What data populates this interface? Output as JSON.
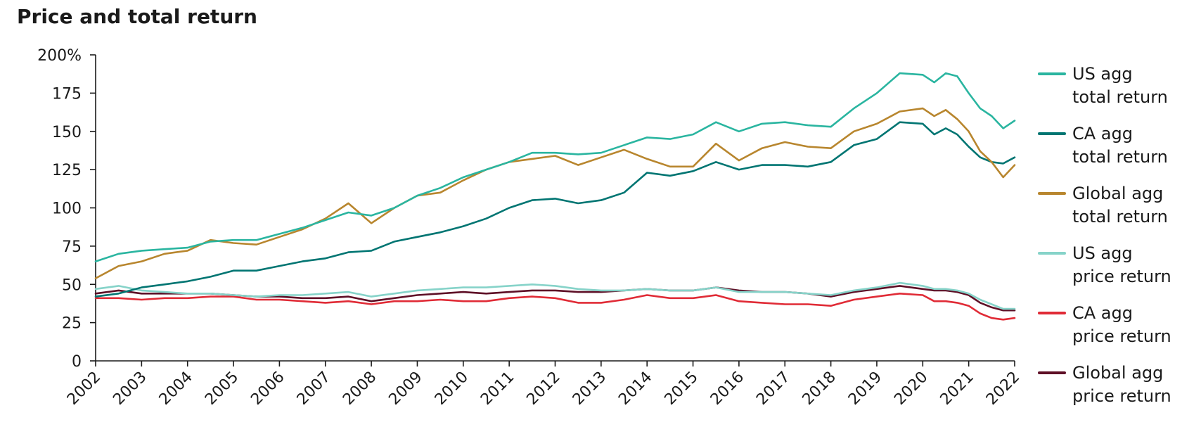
{
  "chart_data": {
    "type": "line",
    "title": "Price and total return",
    "xlabel": "",
    "ylabel": "",
    "x_ticks": [
      "2002",
      "2003",
      "2004",
      "2005",
      "2006",
      "2007",
      "2008",
      "2009",
      "2010",
      "2011",
      "2012",
      "2013",
      "2014",
      "2015",
      "2016",
      "2017",
      "2018",
      "2019",
      "2020",
      "2021",
      "2022"
    ],
    "y_ticks": [
      0,
      25,
      50,
      75,
      100,
      125,
      150,
      175,
      200
    ],
    "y_tick_labels": [
      "0",
      "25",
      "50",
      "75",
      "100",
      "125",
      "150",
      "175",
      "200%"
    ],
    "xlim": [
      2002,
      2022
    ],
    "ylim": [
      0,
      200
    ],
    "grid": false,
    "legend_position": "right",
    "series": [
      {
        "name": "US agg total return",
        "legend_lines": [
          "US agg",
          "total return"
        ],
        "color": "#2ab5a0",
        "points": [
          [
            2002,
            65
          ],
          [
            2002.5,
            70
          ],
          [
            2003,
            72
          ],
          [
            2003.5,
            73
          ],
          [
            2004,
            74
          ],
          [
            2004.5,
            78
          ],
          [
            2005,
            79
          ],
          [
            2005.5,
            79
          ],
          [
            2006,
            83
          ],
          [
            2006.5,
            87
          ],
          [
            2007,
            92
          ],
          [
            2007.5,
            97
          ],
          [
            2008,
            95
          ],
          [
            2008.5,
            100
          ],
          [
            2009,
            108
          ],
          [
            2009.5,
            113
          ],
          [
            2010,
            120
          ],
          [
            2010.5,
            125
          ],
          [
            2011,
            130
          ],
          [
            2011.5,
            136
          ],
          [
            2012,
            136
          ],
          [
            2012.5,
            135
          ],
          [
            2013,
            136
          ],
          [
            2013.5,
            141
          ],
          [
            2014,
            146
          ],
          [
            2014.5,
            145
          ],
          [
            2015,
            148
          ],
          [
            2015.5,
            156
          ],
          [
            2016,
            150
          ],
          [
            2016.5,
            155
          ],
          [
            2017,
            156
          ],
          [
            2017.5,
            154
          ],
          [
            2018,
            153
          ],
          [
            2018.5,
            165
          ],
          [
            2019,
            175
          ],
          [
            2019.5,
            188
          ],
          [
            2020,
            187
          ],
          [
            2020.25,
            182
          ],
          [
            2020.5,
            188
          ],
          [
            2020.75,
            186
          ],
          [
            2021,
            175
          ],
          [
            2021.25,
            165
          ],
          [
            2021.5,
            160
          ],
          [
            2021.75,
            152
          ],
          [
            2022,
            157
          ]
        ]
      },
      {
        "name": "CA agg total return",
        "legend_lines": [
          "CA agg",
          "total return"
        ],
        "color": "#007572",
        "points": [
          [
            2002,
            42
          ],
          [
            2002.5,
            44
          ],
          [
            2003,
            48
          ],
          [
            2003.5,
            50
          ],
          [
            2004,
            52
          ],
          [
            2004.5,
            55
          ],
          [
            2005,
            59
          ],
          [
            2005.5,
            59
          ],
          [
            2006,
            62
          ],
          [
            2006.5,
            65
          ],
          [
            2007,
            67
          ],
          [
            2007.5,
            71
          ],
          [
            2008,
            72
          ],
          [
            2008.5,
            78
          ],
          [
            2009,
            81
          ],
          [
            2009.5,
            84
          ],
          [
            2010,
            88
          ],
          [
            2010.5,
            93
          ],
          [
            2011,
            100
          ],
          [
            2011.5,
            105
          ],
          [
            2012,
            106
          ],
          [
            2012.5,
            103
          ],
          [
            2013,
            105
          ],
          [
            2013.5,
            110
          ],
          [
            2014,
            123
          ],
          [
            2014.5,
            121
          ],
          [
            2015,
            124
          ],
          [
            2015.5,
            130
          ],
          [
            2016,
            125
          ],
          [
            2016.5,
            128
          ],
          [
            2017,
            128
          ],
          [
            2017.5,
            127
          ],
          [
            2018,
            130
          ],
          [
            2018.5,
            141
          ],
          [
            2019,
            145
          ],
          [
            2019.5,
            156
          ],
          [
            2020,
            155
          ],
          [
            2020.25,
            148
          ],
          [
            2020.5,
            152
          ],
          [
            2020.75,
            148
          ],
          [
            2021,
            140
          ],
          [
            2021.25,
            133
          ],
          [
            2021.5,
            130
          ],
          [
            2021.75,
            129
          ],
          [
            2022,
            133
          ]
        ]
      },
      {
        "name": "Global agg total return",
        "legend_lines": [
          "Global agg",
          "total return"
        ],
        "color": "#b8862e",
        "points": [
          [
            2002,
            54
          ],
          [
            2002.5,
            62
          ],
          [
            2003,
            65
          ],
          [
            2003.5,
            70
          ],
          [
            2004,
            72
          ],
          [
            2004.5,
            79
          ],
          [
            2005,
            77
          ],
          [
            2005.5,
            76
          ],
          [
            2006,
            81
          ],
          [
            2006.5,
            86
          ],
          [
            2007,
            93
          ],
          [
            2007.5,
            103
          ],
          [
            2008,
            90
          ],
          [
            2008.5,
            100
          ],
          [
            2009,
            108
          ],
          [
            2009.5,
            110
          ],
          [
            2010,
            118
          ],
          [
            2010.5,
            125
          ],
          [
            2011,
            130
          ],
          [
            2011.5,
            132
          ],
          [
            2012,
            134
          ],
          [
            2012.5,
            128
          ],
          [
            2013,
            133
          ],
          [
            2013.5,
            138
          ],
          [
            2014,
            132
          ],
          [
            2014.5,
            127
          ],
          [
            2015,
            127
          ],
          [
            2015.5,
            142
          ],
          [
            2016,
            131
          ],
          [
            2016.5,
            139
          ],
          [
            2017,
            143
          ],
          [
            2017.5,
            140
          ],
          [
            2018,
            139
          ],
          [
            2018.5,
            150
          ],
          [
            2019,
            155
          ],
          [
            2019.5,
            163
          ],
          [
            2020,
            165
          ],
          [
            2020.25,
            160
          ],
          [
            2020.5,
            164
          ],
          [
            2020.75,
            158
          ],
          [
            2021,
            150
          ],
          [
            2021.25,
            137
          ],
          [
            2021.5,
            130
          ],
          [
            2021.75,
            120
          ],
          [
            2022,
            128
          ]
        ]
      },
      {
        "name": "US agg price return",
        "legend_lines": [
          "US agg",
          "price return"
        ],
        "color": "#86d3c9",
        "points": [
          [
            2002,
            47
          ],
          [
            2002.5,
            49
          ],
          [
            2003,
            46
          ],
          [
            2003.5,
            45
          ],
          [
            2004,
            44
          ],
          [
            2004.5,
            44
          ],
          [
            2005,
            43
          ],
          [
            2005.5,
            42
          ],
          [
            2006,
            43
          ],
          [
            2006.5,
            43
          ],
          [
            2007,
            44
          ],
          [
            2007.5,
            45
          ],
          [
            2008,
            42
          ],
          [
            2008.5,
            44
          ],
          [
            2009,
            46
          ],
          [
            2009.5,
            47
          ],
          [
            2010,
            48
          ],
          [
            2010.5,
            48
          ],
          [
            2011,
            49
          ],
          [
            2011.5,
            50
          ],
          [
            2012,
            49
          ],
          [
            2012.5,
            47
          ],
          [
            2013,
            46
          ],
          [
            2013.5,
            46
          ],
          [
            2014,
            47
          ],
          [
            2014.5,
            46
          ],
          [
            2015,
            46
          ],
          [
            2015.5,
            48
          ],
          [
            2016,
            45
          ],
          [
            2016.5,
            45
          ],
          [
            2017,
            45
          ],
          [
            2017.5,
            44
          ],
          [
            2018,
            43
          ],
          [
            2018.5,
            46
          ],
          [
            2019,
            48
          ],
          [
            2019.5,
            51
          ],
          [
            2020,
            49
          ],
          [
            2020.25,
            47
          ],
          [
            2020.5,
            47
          ],
          [
            2020.75,
            46
          ],
          [
            2021,
            44
          ],
          [
            2021.25,
            40
          ],
          [
            2021.5,
            37
          ],
          [
            2021.75,
            34
          ],
          [
            2022,
            34
          ]
        ]
      },
      {
        "name": "CA agg price return",
        "legend_lines": [
          "CA agg",
          "price return"
        ],
        "color": "#e02b36",
        "points": [
          [
            2002,
            41
          ],
          [
            2002.5,
            41
          ],
          [
            2003,
            40
          ],
          [
            2003.5,
            41
          ],
          [
            2004,
            41
          ],
          [
            2004.5,
            42
          ],
          [
            2005,
            42
          ],
          [
            2005.5,
            40
          ],
          [
            2006,
            40
          ],
          [
            2006.5,
            39
          ],
          [
            2007,
            38
          ],
          [
            2007.5,
            39
          ],
          [
            2008,
            37
          ],
          [
            2008.5,
            39
          ],
          [
            2009,
            39
          ],
          [
            2009.5,
            40
          ],
          [
            2010,
            39
          ],
          [
            2010.5,
            39
          ],
          [
            2011,
            41
          ],
          [
            2011.5,
            42
          ],
          [
            2012,
            41
          ],
          [
            2012.5,
            38
          ],
          [
            2013,
            38
          ],
          [
            2013.5,
            40
          ],
          [
            2014,
            43
          ],
          [
            2014.5,
            41
          ],
          [
            2015,
            41
          ],
          [
            2015.5,
            43
          ],
          [
            2016,
            39
          ],
          [
            2016.5,
            38
          ],
          [
            2017,
            37
          ],
          [
            2017.5,
            37
          ],
          [
            2018,
            36
          ],
          [
            2018.5,
            40
          ],
          [
            2019,
            42
          ],
          [
            2019.5,
            44
          ],
          [
            2020,
            43
          ],
          [
            2020.25,
            39
          ],
          [
            2020.5,
            39
          ],
          [
            2020.75,
            38
          ],
          [
            2021,
            36
          ],
          [
            2021.25,
            31
          ],
          [
            2021.5,
            28
          ],
          [
            2021.75,
            27
          ],
          [
            2022,
            28
          ]
        ]
      },
      {
        "name": "Global agg price return",
        "legend_lines": [
          "Global agg",
          "price return"
        ],
        "color": "#5e0f26",
        "points": [
          [
            2002,
            44
          ],
          [
            2002.5,
            46
          ],
          [
            2003,
            44
          ],
          [
            2003.5,
            44
          ],
          [
            2004,
            44
          ],
          [
            2004.5,
            44
          ],
          [
            2005,
            43
          ],
          [
            2005.5,
            42
          ],
          [
            2006,
            42
          ],
          [
            2006.5,
            41
          ],
          [
            2007,
            41
          ],
          [
            2007.5,
            42
          ],
          [
            2008,
            39
          ],
          [
            2008.5,
            41
          ],
          [
            2009,
            43
          ],
          [
            2009.5,
            44
          ],
          [
            2010,
            45
          ],
          [
            2010.5,
            44
          ],
          [
            2011,
            45
          ],
          [
            2011.5,
            46
          ],
          [
            2012,
            46
          ],
          [
            2012.5,
            45
          ],
          [
            2013,
            45
          ],
          [
            2013.5,
            46
          ],
          [
            2014,
            47
          ],
          [
            2014.5,
            46
          ],
          [
            2015,
            46
          ],
          [
            2015.5,
            48
          ],
          [
            2016,
            46
          ],
          [
            2016.5,
            45
          ],
          [
            2017,
            45
          ],
          [
            2017.5,
            44
          ],
          [
            2018,
            42
          ],
          [
            2018.5,
            45
          ],
          [
            2019,
            47
          ],
          [
            2019.5,
            49
          ],
          [
            2020,
            47
          ],
          [
            2020.25,
            46
          ],
          [
            2020.5,
            46
          ],
          [
            2020.75,
            45
          ],
          [
            2021,
            43
          ],
          [
            2021.25,
            38
          ],
          [
            2021.5,
            35
          ],
          [
            2021.75,
            33
          ],
          [
            2022,
            33
          ]
        ]
      }
    ]
  }
}
